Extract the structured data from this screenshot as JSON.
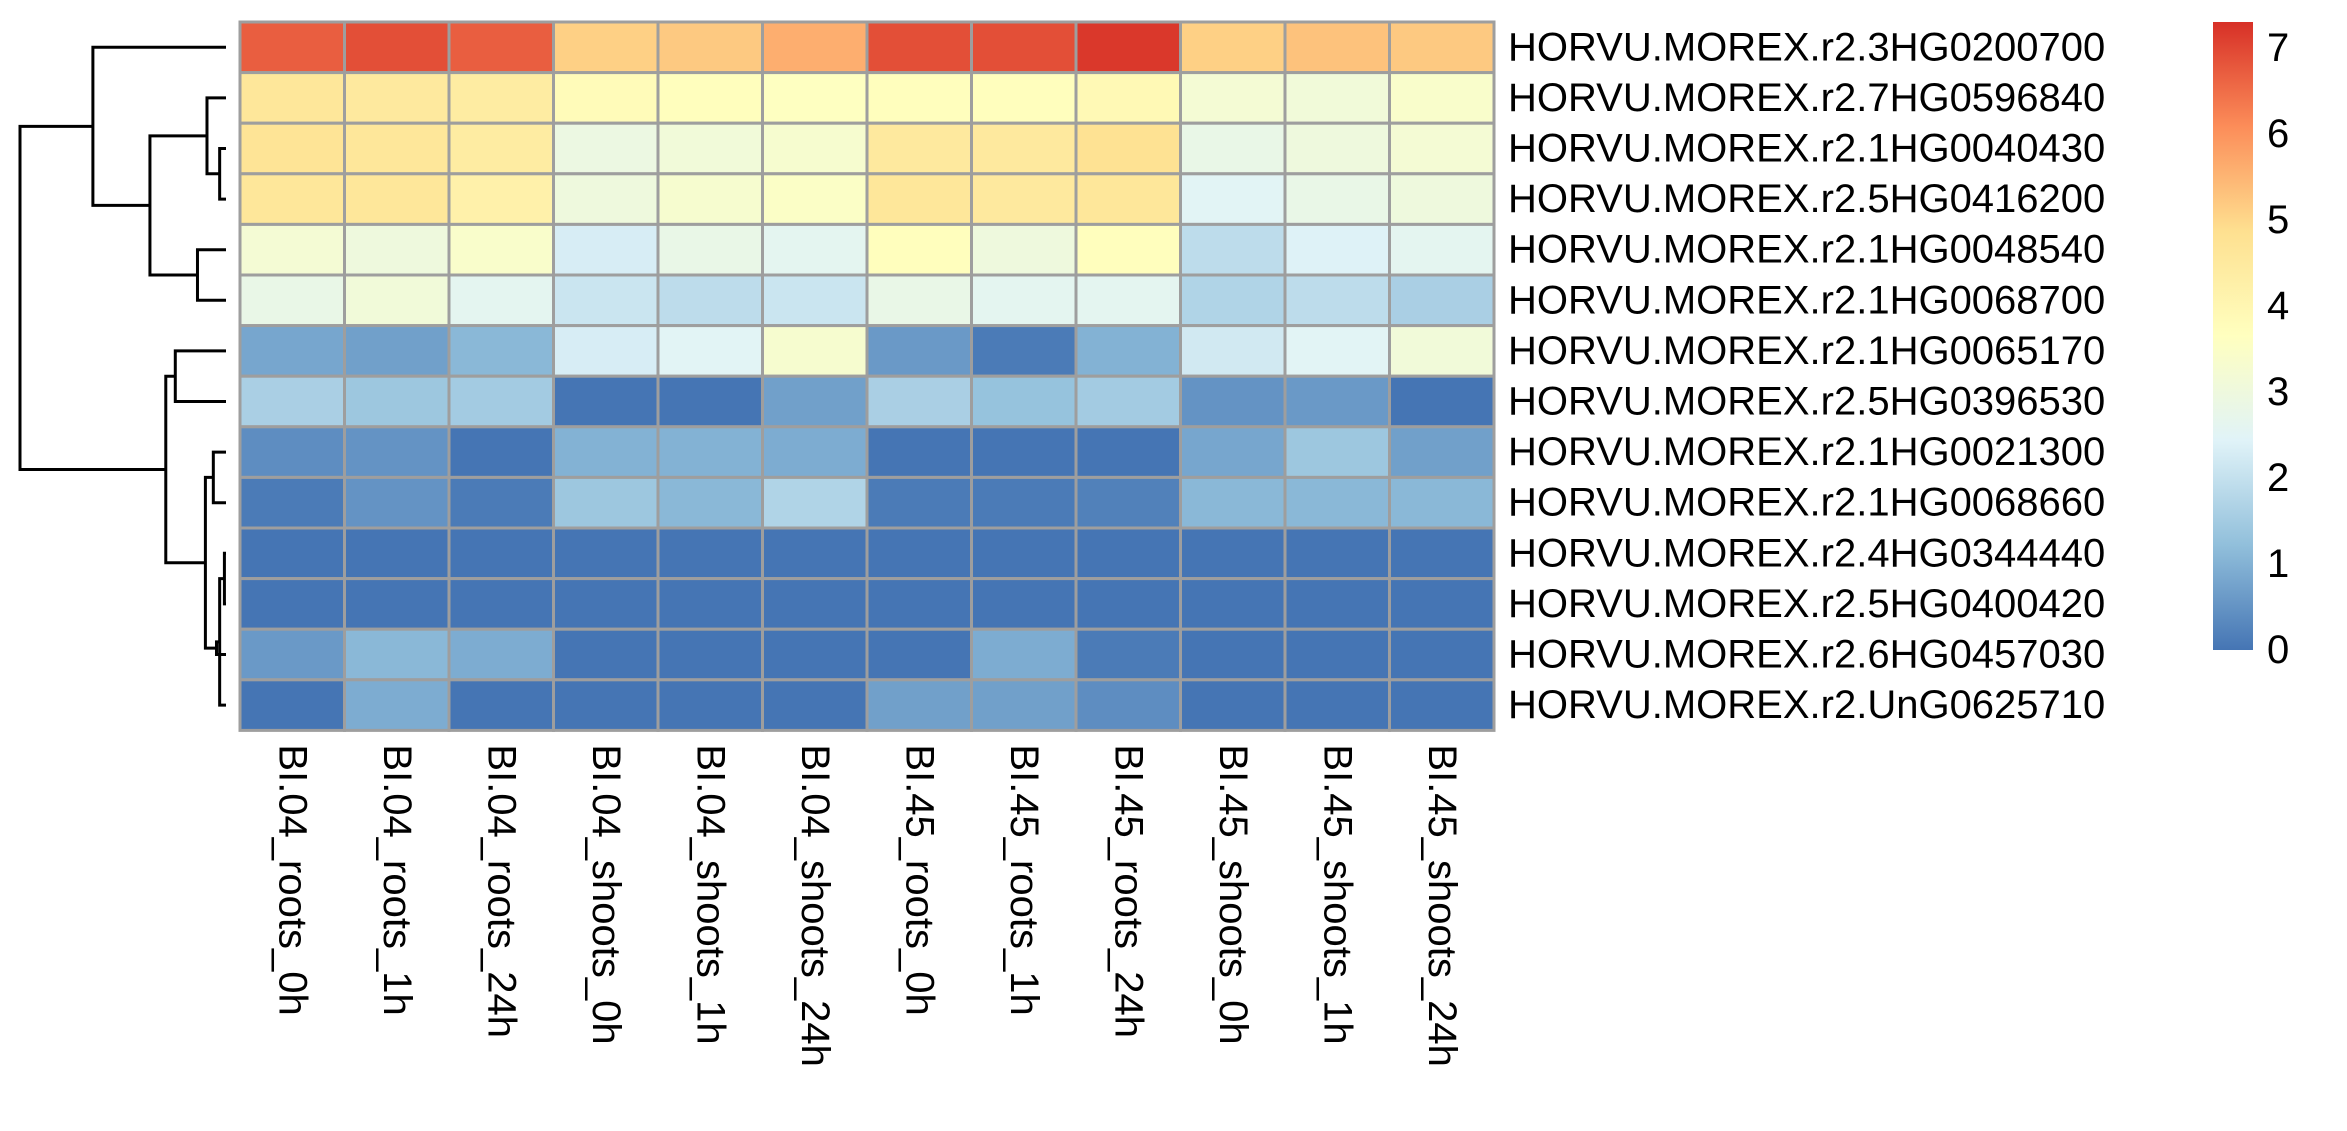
{
  "chart_data": {
    "type": "heatmap",
    "title": "",
    "columns": [
      "BI.04_roots_0h",
      "BI.04_roots_1h",
      "BI.04_roots_24h",
      "BI.04_shoots_0h",
      "BI.04_shoots_1h",
      "BI.04_shoots_24h",
      "BI.45_roots_0h",
      "BI.45_roots_1h",
      "BI.45_roots_24h",
      "BI.45_shoots_0h",
      "BI.45_shoots_1h",
      "BI.45_shoots_24h"
    ],
    "rows": [
      "HORVU.MOREX.r2.3HG0200700",
      "HORVU.MOREX.r2.7HG0596840",
      "HORVU.MOREX.r2.1HG0040430",
      "HORVU.MOREX.r2.5HG0416200",
      "HORVU.MOREX.r2.1HG0048540",
      "HORVU.MOREX.r2.1HG0068700",
      "HORVU.MOREX.r2.1HG0065170",
      "HORVU.MOREX.r2.5HG0396530",
      "HORVU.MOREX.r2.1HG0021300",
      "HORVU.MOREX.r2.1HG0068660",
      "HORVU.MOREX.r2.4HG0344440",
      "HORVU.MOREX.r2.5HG0400420",
      "HORVU.MOREX.r2.6HG0457030",
      "HORVU.MOREX.r2.UnG0625710"
    ],
    "values": [
      [
        6.7,
        6.9,
        6.7,
        5.1,
        5.2,
        5.6,
        6.9,
        6.9,
        7.2,
        5.1,
        5.3,
        5.2
      ],
      [
        4.6,
        4.5,
        4.4,
        3.8,
        3.7,
        3.6,
        3.7,
        3.7,
        3.9,
        3.2,
        3.1,
        3.4
      ],
      [
        4.7,
        4.6,
        4.4,
        2.9,
        3.1,
        3.3,
        4.5,
        4.5,
        4.8,
        2.8,
        3.0,
        3.2
      ],
      [
        4.6,
        4.6,
        4.2,
        3.0,
        3.3,
        3.5,
        4.6,
        4.5,
        4.6,
        2.5,
        2.8,
        3.0
      ],
      [
        3.2,
        3.0,
        3.4,
        2.3,
        2.8,
        2.6,
        3.7,
        3.0,
        3.7,
        1.9,
        2.4,
        2.6
      ],
      [
        2.8,
        3.1,
        2.6,
        2.1,
        1.9,
        2.1,
        2.8,
        2.6,
        2.6,
        1.7,
        1.9,
        1.6
      ],
      [
        0.8,
        0.7,
        1.1,
        2.3,
        2.5,
        3.3,
        0.6,
        0.1,
        1.0,
        2.2,
        2.5,
        3.1
      ],
      [
        1.6,
        1.4,
        1.5,
        0.0,
        0.0,
        0.7,
        1.6,
        1.3,
        1.5,
        0.5,
        0.6,
        0.0
      ],
      [
        0.4,
        0.5,
        0.0,
        1.0,
        1.0,
        0.9,
        0.0,
        0.0,
        0.0,
        0.8,
        1.4,
        0.7
      ],
      [
        0.1,
        0.5,
        0.1,
        1.4,
        1.1,
        1.7,
        0.1,
        0.1,
        0.2,
        1.1,
        1.1,
        1.1
      ],
      [
        0.0,
        0.0,
        0.0,
        0.0,
        0.0,
        0.0,
        0.0,
        0.0,
        0.0,
        0.0,
        0.0,
        0.0
      ],
      [
        0.0,
        0.0,
        0.0,
        0.0,
        0.0,
        0.0,
        0.0,
        0.0,
        0.0,
        0.0,
        0.0,
        0.0
      ],
      [
        0.6,
        1.1,
        0.9,
        0.0,
        0.0,
        0.0,
        0.0,
        0.9,
        0.1,
        0.0,
        0.0,
        0.0
      ],
      [
        0.0,
        0.9,
        0.0,
        0.0,
        0.0,
        0.0,
        0.7,
        0.7,
        0.4,
        0.0,
        0.0,
        0.0
      ]
    ],
    "color_scale": {
      "min": 0,
      "max": 7.3,
      "stops": [
        "#4575b4",
        "#91bfdb",
        "#e0f3f8",
        "#ffffbf",
        "#fee090",
        "#fc8d59",
        "#d73027"
      ]
    },
    "legend": {
      "position": "right",
      "ticks": [
        "0",
        "1",
        "2",
        "3",
        "4",
        "5",
        "6",
        "7"
      ]
    },
    "row_dendrogram": {
      "merges": [
        [
          -3,
          -4,
          0.2
        ],
        [
          -2,
          1,
          0.6
        ],
        [
          -5,
          -6,
          0.9
        ],
        [
          2,
          3,
          2.4
        ],
        [
          -1,
          4,
          4.2
        ],
        [
          -11,
          -12,
          0.05
        ],
        [
          -14,
          6,
          0.2
        ],
        [
          -13,
          7,
          0.3
        ],
        [
          -9,
          -10,
          0.4
        ],
        [
          9,
          8,
          0.65
        ],
        [
          -7,
          -8,
          1.6
        ],
        [
          11,
          10,
          1.9
        ],
        [
          5,
          12,
          6.5
        ]
      ]
    }
  }
}
